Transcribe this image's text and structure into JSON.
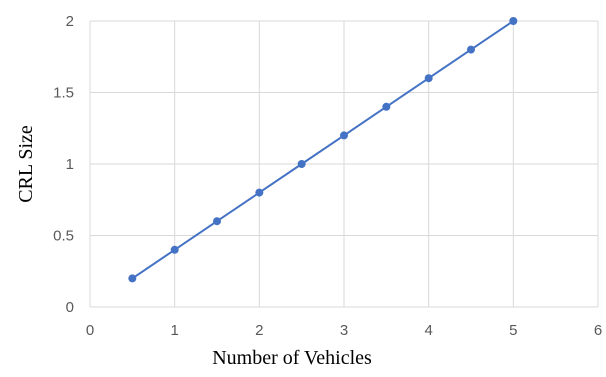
{
  "chart_data": {
    "type": "line",
    "title": "",
    "xlabel": "Number of Vehicles",
    "ylabel": "CRL Size",
    "xlim": [
      0,
      6
    ],
    "ylim": [
      0,
      2
    ],
    "x_ticks": [
      0,
      1,
      2,
      3,
      4,
      5,
      6
    ],
    "y_ticks": [
      0,
      0.5,
      1,
      1.5,
      2
    ],
    "x_tick_labels": [
      "0",
      "1",
      "2",
      "3",
      "4",
      "5",
      "6"
    ],
    "y_tick_labels": [
      "0",
      "0.5",
      "1",
      "1.5",
      "2"
    ],
    "grid": true,
    "legend": "none",
    "series": [
      {
        "color": "#4472C4",
        "marker": "circle",
        "x": [
          0.5,
          1,
          1.5,
          2,
          2.5,
          3,
          3.5,
          4,
          4.5,
          5
        ],
        "y": [
          0.2,
          0.4,
          0.6,
          0.8,
          1.0,
          1.2,
          1.4,
          1.6,
          1.8,
          2.0
        ]
      }
    ],
    "colors": {
      "grid": "#D9D9D9",
      "tick_text": "#595959",
      "axis_title": "#000000"
    }
  }
}
